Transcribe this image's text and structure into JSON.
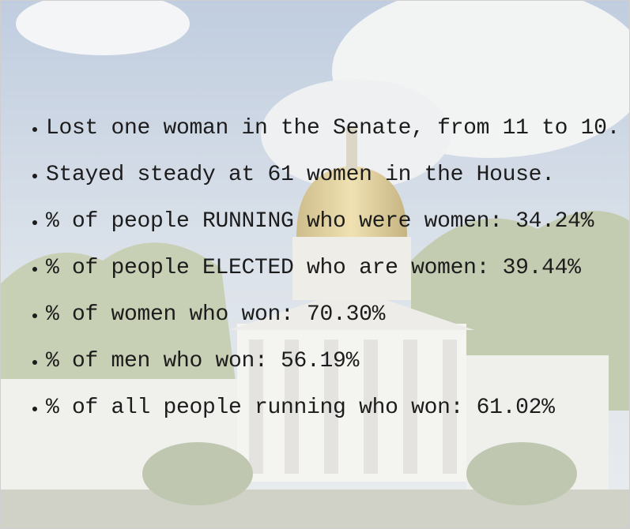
{
  "items": [
    "Lost one woman in the Senate, from 11 to 10.",
    "Stayed steady at 61 women in the House.",
    "% of people RUNNING who were women: 34.24%",
    "% of people ELECTED who are women: 39.44%",
    "% of women who won: 70.30%",
    "% of men who won: 56.19%",
    "% of all people running who won: 61.02%"
  ]
}
